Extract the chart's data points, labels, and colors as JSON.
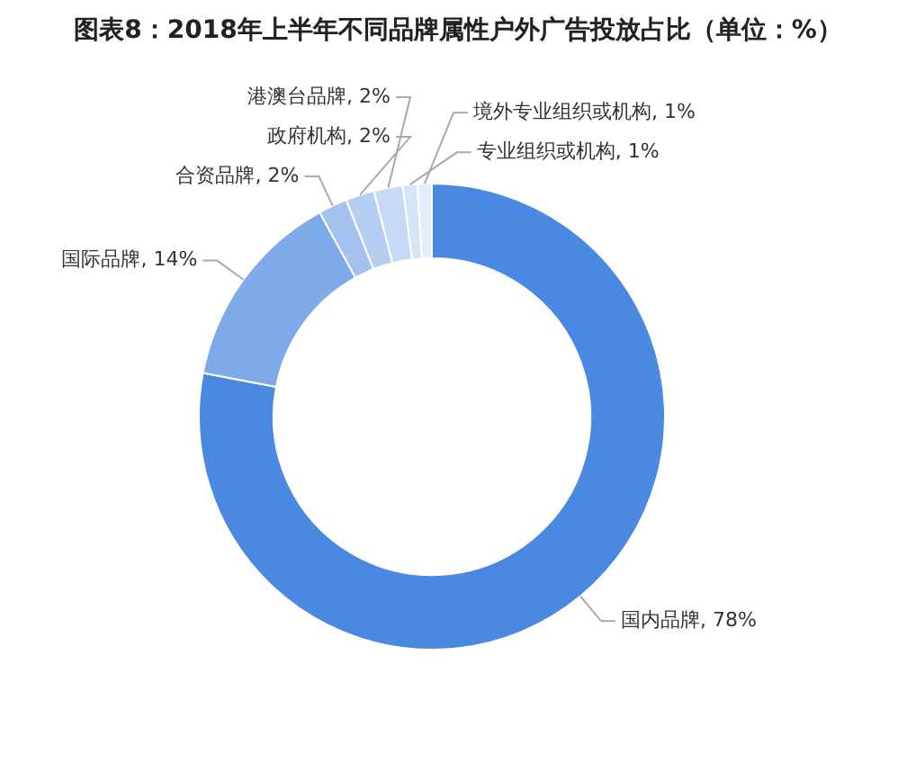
{
  "chart_data": {
    "type": "donut",
    "title": "图表8：2018年上半年不同品牌属性户外广告投放占比（单位：%）",
    "categories": [
      "国内品牌",
      "国际品牌",
      "合资品牌",
      "政府机构",
      "港澳台品牌",
      "专业组织或机构",
      "境外专业组织或机构"
    ],
    "values": [
      78,
      14,
      2,
      2,
      2,
      1,
      1
    ],
    "value_labels": [
      "78%",
      "14%",
      "2%",
      "2%",
      "2%",
      "1%",
      "1%"
    ],
    "colors": [
      "#4a88e2",
      "#7eaae9",
      "#a3c2f0",
      "#b5cef2",
      "#c6d9f5",
      "#d6e4f8",
      "#e4edfa"
    ],
    "legend": false
  }
}
